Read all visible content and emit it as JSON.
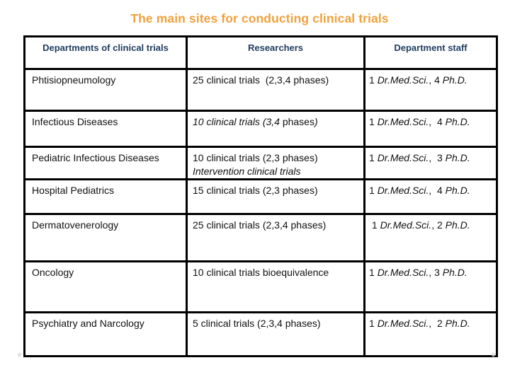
{
  "title": {
    "text": "The main sites for conducting clinical trials",
    "color": "#F0A13C"
  },
  "table": {
    "header": {
      "color": "#1F3C5F",
      "columns": [
        "Departments of clinical trials",
        "Researchers",
        "Department staff"
      ]
    },
    "rows": [
      {
        "department": "Phtisiopneumology",
        "researchers": [
          {
            "t": "25 clinical trials  (2,3,4 phases)"
          }
        ],
        "staff": [
          {
            "t": "1 "
          },
          {
            "t": "Dr.Med.Sci.",
            "i": true
          },
          {
            "t": ", 4 "
          },
          {
            "t": "Ph.D.",
            "i": true
          }
        ]
      },
      {
        "department": "Infectious Diseases",
        "researchers": [
          {
            "t": "10 clinical trials (3,4 ",
            "i": true
          },
          {
            "t": "phases"
          },
          {
            "t": ")",
            "i": true
          }
        ],
        "staff": [
          {
            "t": "1 "
          },
          {
            "t": "Dr.Med.Sci.",
            "i": true
          },
          {
            "t": ",  4 "
          },
          {
            "t": "Ph.D.",
            "i": true
          }
        ]
      },
      {
        "department": "Pediatric Infectious Diseases",
        "researchers": [
          {
            "t": "10 clinical trials (2,3 phases)"
          },
          {
            "t": "Intervention clinical trials",
            "i": true,
            "br": true
          }
        ],
        "staff": [
          {
            "t": "1 "
          },
          {
            "t": "Dr.Med.Sci.",
            "i": true
          },
          {
            "t": ",  3 "
          },
          {
            "t": "Ph.D.",
            "i": true
          }
        ]
      },
      {
        "department": "Hospital Pediatrics",
        "researchers": [
          {
            "t": "15 clinical trials (2,3 phases)"
          }
        ],
        "staff": [
          {
            "t": "1 "
          },
          {
            "t": "Dr.Med.Sci.",
            "i": true
          },
          {
            "t": ",  4 "
          },
          {
            "t": "Ph.D.",
            "i": true
          }
        ]
      },
      {
        "department": "Dermatovenerology",
        "researchers": [
          {
            "t": "25 clinical trials (2,3,4 phases)"
          }
        ],
        "staff": [
          {
            "t": " 1 "
          },
          {
            "t": "Dr.Med.Sci.",
            "i": true
          },
          {
            "t": ", 2 "
          },
          {
            "t": "Ph.D.",
            "i": true
          }
        ]
      },
      {
        "department": "Oncology",
        "researchers": [
          {
            "t": "10 clinical trials bioequivalence"
          }
        ],
        "staff": [
          {
            "t": "1 "
          },
          {
            "t": "Dr.Med.Sci.",
            "i": true
          },
          {
            "t": ", 3 "
          },
          {
            "t": "Ph.D.",
            "i": true
          }
        ]
      },
      {
        "department": "Psychiatry and Narcology",
        "researchers": [
          {
            "t": "5 clinical trials (2,3,4 phases)"
          }
        ],
        "staff": [
          {
            "t": "1 "
          },
          {
            "t": "Dr.Med.Sci.",
            "i": true
          },
          {
            "t": ",  2 "
          },
          {
            "t": "Ph.D.",
            "i": true
          }
        ]
      }
    ]
  }
}
